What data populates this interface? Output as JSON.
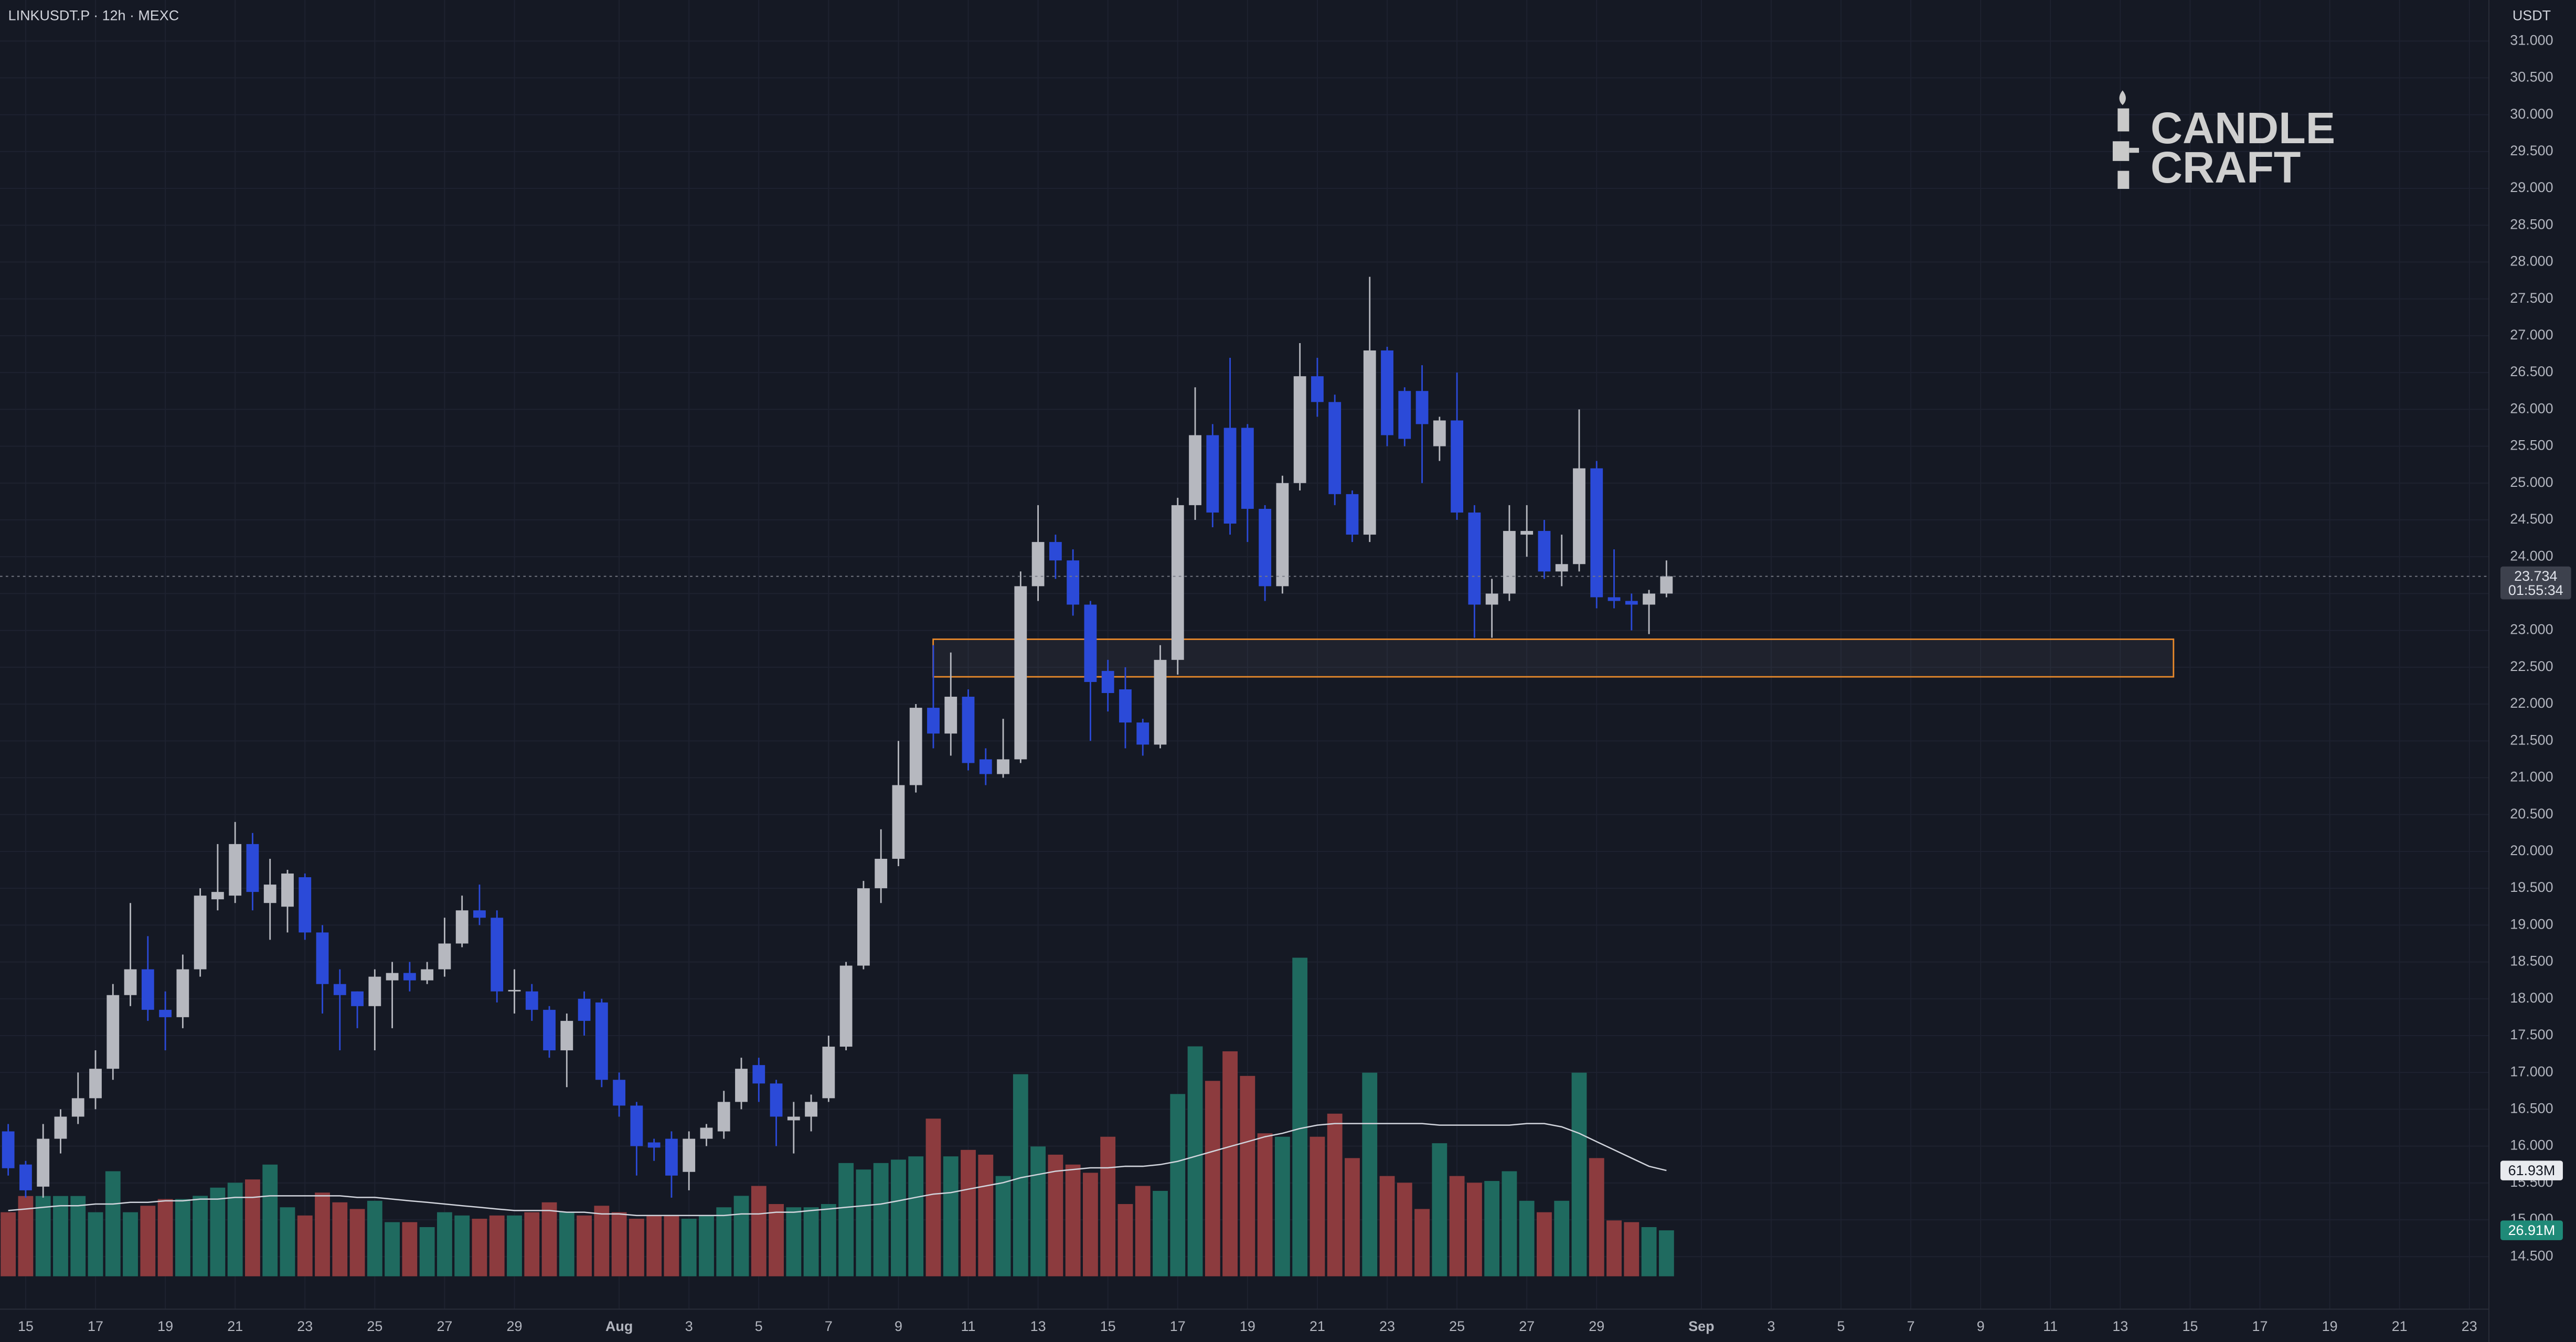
{
  "chart_data": {
    "type": "candlestick",
    "title": "LINKUSDT.P · 12h · MEXC",
    "currency": "USDT",
    "logo_text": [
      "CANDLE",
      "CRAFT"
    ],
    "open": [
      16.2,
      15.75,
      15.45,
      16.1,
      16.4,
      16.65,
      17.05,
      18.05,
      18.4,
      17.85,
      17.75,
      18.4,
      19.35,
      19.4,
      20.1,
      19.3,
      19.25,
      19.65,
      18.9,
      18.2,
      18.1,
      17.9,
      18.25,
      18.35,
      18.25,
      18.4,
      18.75,
      19.2,
      19.1,
      18.1,
      18.1,
      17.85,
      17.3,
      18.0,
      17.95,
      16.9,
      16.55,
      16.05,
      16.1,
      15.65,
      16.1,
      16.2,
      16.6,
      17.1,
      16.85,
      16.35,
      16.4,
      16.65,
      17.35,
      18.45,
      19.5,
      19.9,
      20.9,
      21.95,
      21.6,
      22.1,
      21.25,
      21.05,
      21.25,
      23.6,
      24.2,
      23.95,
      23.35,
      22.45,
      22.2,
      21.75,
      21.45,
      22.6,
      24.7,
      25.65,
      25.75,
      25.75,
      24.65,
      23.6,
      25.0,
      26.45,
      26.1,
      24.85,
      24.3,
      26.8,
      26.25,
      26.25,
      25.5,
      25.85,
      24.6,
      23.35,
      23.5,
      24.3,
      24.35,
      23.8,
      23.9,
      25.2,
      23.45,
      23.4,
      23.35,
      23.5
    ],
    "high": [
      16.3,
      15.8,
      16.3,
      16.5,
      17.0,
      17.3,
      18.2,
      19.3,
      18.85,
      18.1,
      18.6,
      19.5,
      20.1,
      20.4,
      20.25,
      19.9,
      19.75,
      19.7,
      19.0,
      18.4,
      18.1,
      18.4,
      18.5,
      18.5,
      18.5,
      19.1,
      19.4,
      19.55,
      19.2,
      18.4,
      18.2,
      17.9,
      17.8,
      18.1,
      18.0,
      17.0,
      16.6,
      16.1,
      16.2,
      16.2,
      16.3,
      16.75,
      17.2,
      17.2,
      16.9,
      16.6,
      16.7,
      17.5,
      18.5,
      19.6,
      20.3,
      21.5,
      22.0,
      22.8,
      22.7,
      22.2,
      21.4,
      21.8,
      23.8,
      24.7,
      24.3,
      24.1,
      23.4,
      22.6,
      22.5,
      21.8,
      22.8,
      24.8,
      26.3,
      25.8,
      26.7,
      25.8,
      24.7,
      25.1,
      26.9,
      26.7,
      26.2,
      24.9,
      27.8,
      26.85,
      26.3,
      26.6,
      25.9,
      26.5,
      24.7,
      23.7,
      24.7,
      24.7,
      24.5,
      24.3,
      26.0,
      25.3,
      24.1,
      23.5,
      23.55,
      23.95
    ],
    "low": [
      15.6,
      15.3,
      15.3,
      15.9,
      16.3,
      16.5,
      16.9,
      17.9,
      17.7,
      17.3,
      17.6,
      18.3,
      19.2,
      19.3,
      19.2,
      18.8,
      18.9,
      18.8,
      17.8,
      17.3,
      17.6,
      17.3,
      17.6,
      18.1,
      18.2,
      18.3,
      18.7,
      19.0,
      17.95,
      17.8,
      17.7,
      17.2,
      16.8,
      17.5,
      16.8,
      16.4,
      15.6,
      15.8,
      15.3,
      15.4,
      16.0,
      16.1,
      16.5,
      16.6,
      16.0,
      15.9,
      16.2,
      16.6,
      17.3,
      18.4,
      19.3,
      19.8,
      20.8,
      21.4,
      21.3,
      21.1,
      20.9,
      21.0,
      21.2,
      23.4,
      23.7,
      23.2,
      21.5,
      21.9,
      21.4,
      21.3,
      21.4,
      22.4,
      24.5,
      24.4,
      24.3,
      24.2,
      23.4,
      23.5,
      24.9,
      25.9,
      24.7,
      24.2,
      24.2,
      25.5,
      25.5,
      25.0,
      25.3,
      24.5,
      22.9,
      22.9,
      23.4,
      24.0,
      23.7,
      23.6,
      23.8,
      23.3,
      23.3,
      23.0,
      22.95,
      23.45
    ],
    "close": [
      15.7,
      15.4,
      16.1,
      16.4,
      16.65,
      17.05,
      18.05,
      18.4,
      17.85,
      17.75,
      18.4,
      19.4,
      19.45,
      20.1,
      19.45,
      19.55,
      19.7,
      18.9,
      18.2,
      18.05,
      17.9,
      18.3,
      18.35,
      18.25,
      18.4,
      18.75,
      19.2,
      19.1,
      18.1,
      18.12,
      17.85,
      17.3,
      17.7,
      17.7,
      16.9,
      16.55,
      16.0,
      15.98,
      15.6,
      16.1,
      16.25,
      16.6,
      17.05,
      16.85,
      16.4,
      16.4,
      16.6,
      17.35,
      18.45,
      19.5,
      19.9,
      20.9,
      21.95,
      21.6,
      22.1,
      21.2,
      21.05,
      21.25,
      23.6,
      24.2,
      23.95,
      23.35,
      22.3,
      22.15,
      21.75,
      21.45,
      22.6,
      24.7,
      25.65,
      24.6,
      24.45,
      24.65,
      23.6,
      25.0,
      26.45,
      26.1,
      24.85,
      24.3,
      26.8,
      25.65,
      25.6,
      25.8,
      25.85,
      24.6,
      23.35,
      23.5,
      24.35,
      24.35,
      23.8,
      23.9,
      25.2,
      23.45,
      23.4,
      23.35,
      23.5,
      23.734
    ],
    "volume": [
      37.5,
      47,
      47,
      47,
      47,
      37.5,
      61.5,
      37.5,
      41.3,
      45.2,
      45.2,
      47.1,
      51.9,
      54.8,
      56.7,
      65.4,
      40.4,
      35.6,
      49,
      43.3,
      39.4,
      44.2,
      31.7,
      31.7,
      28.8,
      37.5,
      35.6,
      33.7,
      35.6,
      35.6,
      37.5,
      43.3,
      37.5,
      35.6,
      41.3,
      37.5,
      33.7,
      35.6,
      35.6,
      33.7,
      35.6,
      40.4,
      47.1,
      52.9,
      42.3,
      40.4,
      40.4,
      42.3,
      66.3,
      62.5,
      66.3,
      68.3,
      70.2,
      92.3,
      70.2,
      74,
      71.2,
      58.7,
      118.3,
      76,
      71.2,
      65.4,
      60.6,
      81.7,
      42.3,
      52.9,
      50,
      106.7,
      134.6,
      114.4,
      131.7,
      117.3,
      83.7,
      81.7,
      186.5,
      81.7,
      95.2,
      69.2,
      119.2,
      58.7,
      54.8,
      39.4,
      77.9,
      58.7,
      54.8,
      55.8,
      61.5,
      44.2,
      37.5,
      44.2,
      119.2,
      69.2,
      32.7,
      31.7,
      28.8,
      26.91
    ],
    "volume_ma": [
      38.5,
      39.4,
      40.4,
      41.3,
      41.3,
      42.3,
      42.3,
      43.3,
      43.3,
      44.2,
      44.2,
      45.2,
      45.2,
      46.2,
      46.2,
      47.1,
      47.1,
      47.1,
      47.1,
      47.1,
      46.2,
      46.2,
      45.2,
      44.2,
      43.3,
      42.3,
      41.3,
      40.4,
      39.4,
      38.5,
      38.5,
      38.5,
      37.5,
      37.5,
      36.5,
      36.5,
      35.6,
      35.6,
      35.6,
      35.6,
      35.6,
      35.6,
      36.5,
      36.5,
      37.5,
      37.5,
      38.5,
      39.4,
      40.4,
      41.3,
      42.3,
      44.2,
      46.2,
      48.1,
      49,
      51,
      52.9,
      54.8,
      57.7,
      59.6,
      61.5,
      62.5,
      63.5,
      63.5,
      64.4,
      64.4,
      65.4,
      67.3,
      70.2,
      73.1,
      76,
      78.8,
      81.7,
      83.7,
      86.5,
      88.5,
      89.4,
      89.4,
      89.4,
      89.4,
      89.4,
      89.4,
      88.5,
      88.5,
      88.5,
      88.5,
      88.5,
      89.4,
      89.4,
      87.5,
      83.7,
      78.8,
      74,
      69.2,
      64.4,
      61.93
    ],
    "colors": {
      "up": "#b6b8bf",
      "down": "#2b4ad8",
      "volume_up": "#1f6a5f",
      "volume_down": "#8c3b3e",
      "volume_ma": "#d1d4dc",
      "zone": "#e8892b"
    },
    "zone": {
      "low": 22.37,
      "high": 22.88
    },
    "last_price": {
      "value": 23.734,
      "label": "23.734"
    },
    "countdown": "01:55:34",
    "volume_ma_label": {
      "value": 61.93,
      "label": "61.93M"
    },
    "volume_label": {
      "value": 26.91,
      "label": "26.91M"
    },
    "grid": true,
    "xlim": [
      -0.4706,
      142.12
    ],
    "xticks": [
      {
        "value": 1,
        "label": "15"
      },
      {
        "value": 5,
        "label": "17"
      },
      {
        "value": 9,
        "label": "19"
      },
      {
        "value": 13,
        "label": "21"
      },
      {
        "value": 17,
        "label": "23"
      },
      {
        "value": 21,
        "label": "25"
      },
      {
        "value": 25,
        "label": "27"
      },
      {
        "value": 29,
        "label": "29"
      },
      {
        "value": 35,
        "label": "Aug"
      },
      {
        "value": 39,
        "label": "3"
      },
      {
        "value": 43,
        "label": "5"
      },
      {
        "value": 47,
        "label": "7"
      },
      {
        "value": 51,
        "label": "9"
      },
      {
        "value": 55,
        "label": "11"
      },
      {
        "value": 59,
        "label": "13"
      },
      {
        "value": 63,
        "label": "15"
      },
      {
        "value": 67,
        "label": "17"
      },
      {
        "value": 71,
        "label": "19"
      },
      {
        "value": 75,
        "label": "21"
      },
      {
        "value": 79,
        "label": "23"
      },
      {
        "value": 83,
        "label": "25"
      },
      {
        "value": 87,
        "label": "27"
      },
      {
        "value": 91,
        "label": "29"
      },
      {
        "value": 97,
        "label": "Sep"
      },
      {
        "value": 101,
        "label": "3"
      },
      {
        "value": 105,
        "label": "5"
      },
      {
        "value": 109,
        "label": "7"
      },
      {
        "value": 113,
        "label": "9"
      },
      {
        "value": 117,
        "label": "11"
      },
      {
        "value": 121,
        "label": "13"
      },
      {
        "value": 125,
        "label": "15"
      },
      {
        "value": 129,
        "label": "17"
      },
      {
        "value": 133,
        "label": "19"
      },
      {
        "value": 137,
        "label": "21"
      },
      {
        "value": 141,
        "label": "23"
      }
    ],
    "ylim": [
      13.787,
      31.557
    ],
    "yticks": [
      {
        "value": 31,
        "label": "31.000"
      },
      {
        "value": 30.5,
        "label": "30.500"
      },
      {
        "value": 30,
        "label": "30.000"
      },
      {
        "value": 29.5,
        "label": "29.500"
      },
      {
        "value": 29,
        "label": "29.000"
      },
      {
        "value": 28.5,
        "label": "28.500"
      },
      {
        "value": 28,
        "label": "28.000"
      },
      {
        "value": 27.5,
        "label": "27.500"
      },
      {
        "value": 27,
        "label": "27.000"
      },
      {
        "value": 26.5,
        "label": "26.500"
      },
      {
        "value": 26,
        "label": "26.000"
      },
      {
        "value": 25.5,
        "label": "25.500"
      },
      {
        "value": 25,
        "label": "25.000"
      },
      {
        "value": 24.5,
        "label": "24.500"
      },
      {
        "value": 24,
        "label": "24.000"
      },
      {
        "value": 23.5,
        "label": "23.500"
      },
      {
        "value": 23,
        "label": "23.000"
      },
      {
        "value": 22.5,
        "label": "22.500"
      },
      {
        "value": 22,
        "label": "22.000"
      },
      {
        "value": 21.5,
        "label": "21.500"
      },
      {
        "value": 21,
        "label": "21.000"
      },
      {
        "value": 20.5,
        "label": "20.500"
      },
      {
        "value": 20,
        "label": "20.000"
      },
      {
        "value": 19.5,
        "label": "19.500"
      },
      {
        "value": 19,
        "label": "19.000"
      },
      {
        "value": 18.5,
        "label": "18.500"
      },
      {
        "value": 18,
        "label": "18.000"
      },
      {
        "value": 17.5,
        "label": "17.500"
      },
      {
        "value": 17,
        "label": "17.000"
      },
      {
        "value": 16.5,
        "label": "16.500"
      },
      {
        "value": 16,
        "label": "16.000"
      },
      {
        "value": 15.5,
        "label": "15.500"
      },
      {
        "value": 15,
        "label": "15.000"
      },
      {
        "value": 14.5,
        "label": "14.500"
      }
    ]
  }
}
